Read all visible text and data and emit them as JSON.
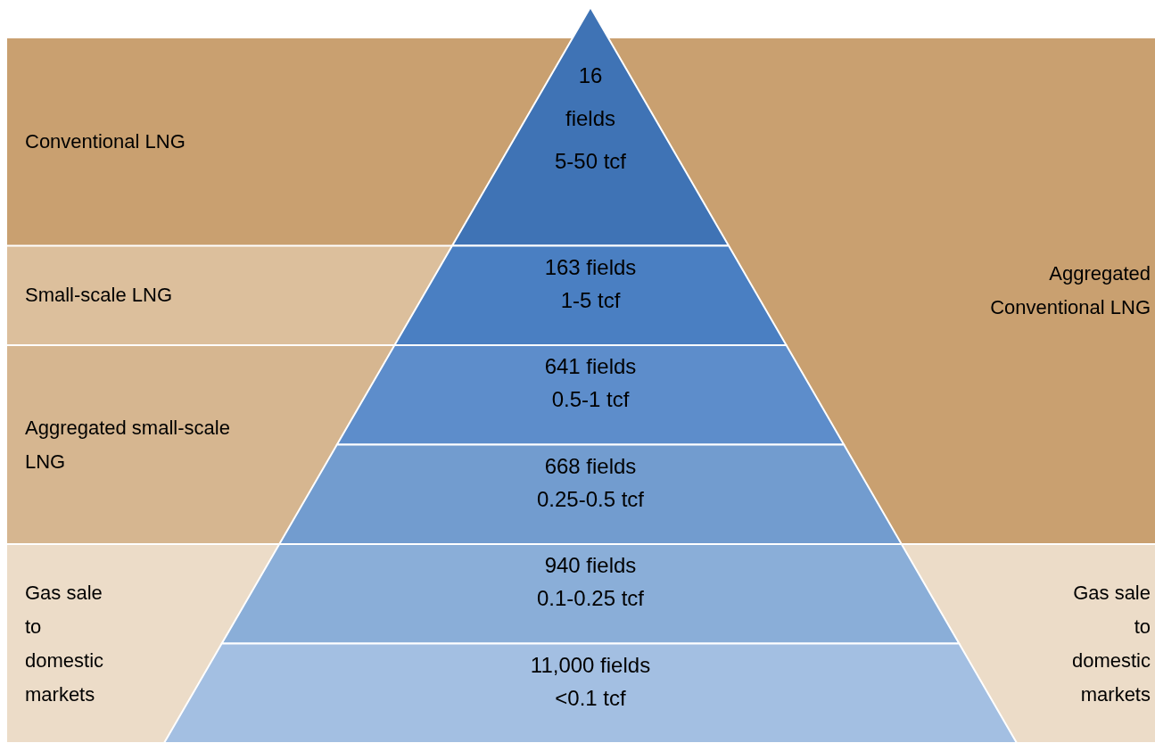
{
  "chart_data": {
    "type": "other",
    "categories": [
      "5-50 tcf",
      "1-5 tcf",
      "0.5-1 tcf",
      "0.25-0.5 tcf",
      "0.1-0.25 tcf",
      "<0.1 tcf"
    ],
    "values": [
      16,
      163,
      641,
      668,
      940,
      11000
    ],
    "value_labels": [
      "16 fields",
      "163 fields",
      "641 fields",
      "668 fields",
      "940 fields",
      "11,000 fields"
    ],
    "colors": [
      "#3f73b5",
      "#4a7fc2",
      "#5d8dcb",
      "#729ccf",
      "#8aaed8",
      "#a3bfe2"
    ],
    "annotations": [
      "Conventional LNG",
      "Small-scale LNG",
      "Aggregated small-scale LNG",
      "Gas sale to domestic markets",
      "Aggregated Conventional LNG",
      "Gas sale to domestic markets"
    ]
  }
}
